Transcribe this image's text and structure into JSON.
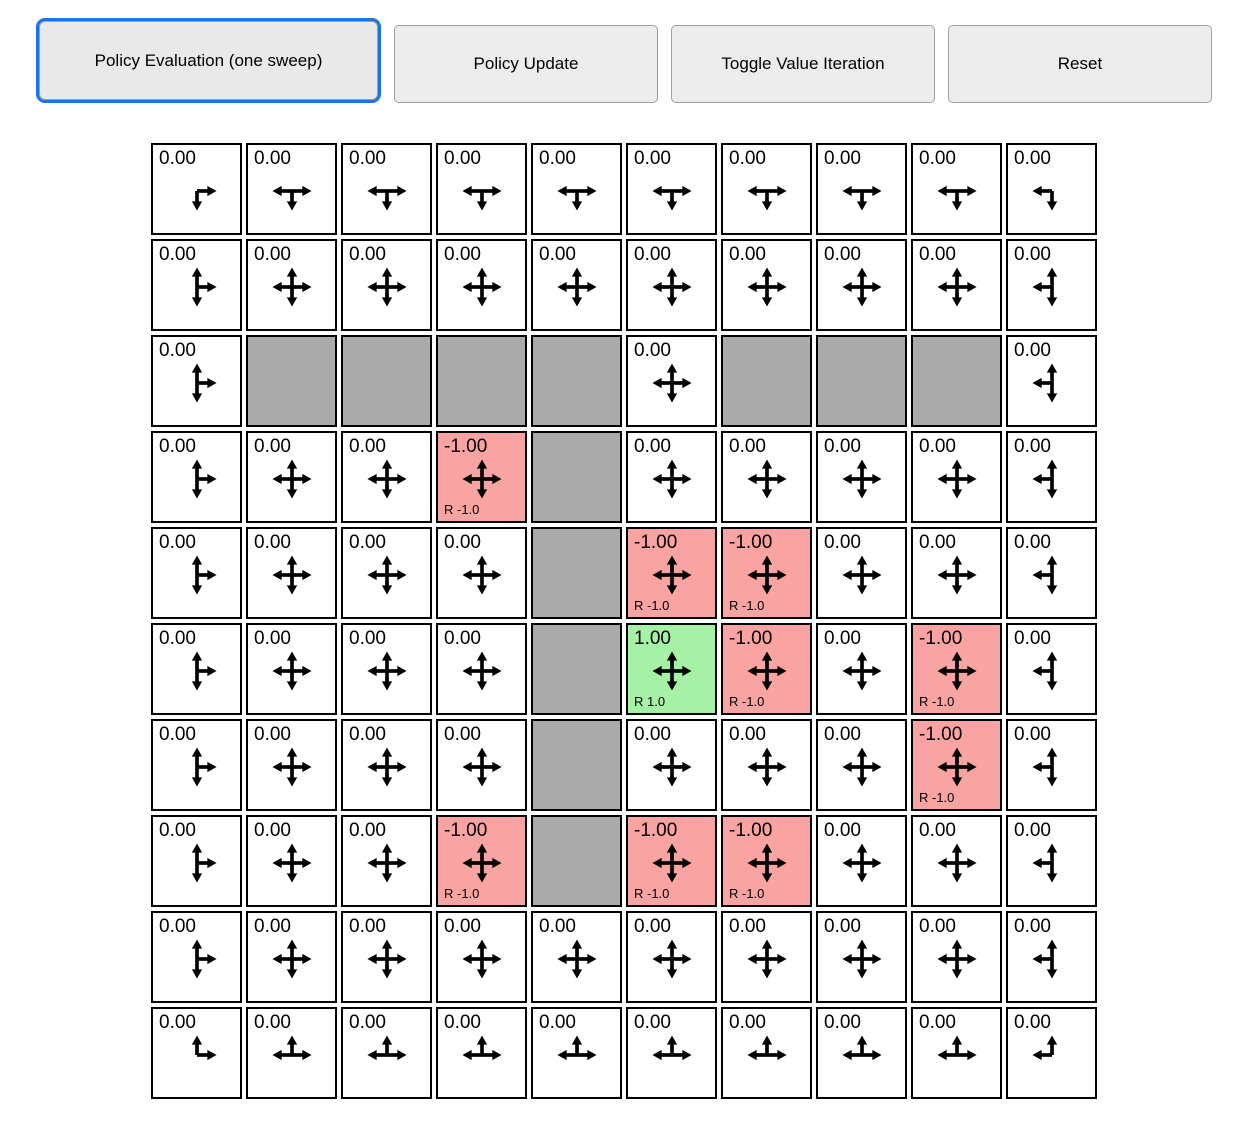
{
  "toolbar": {
    "buttons": [
      {
        "label": "Policy Evaluation (one sweep)",
        "active": true
      },
      {
        "label": "Policy Update",
        "active": false
      },
      {
        "label": "Toggle Value Iteration",
        "active": false
      },
      {
        "label": "Reset",
        "active": false
      }
    ]
  },
  "colors": {
    "accent": "#1a73e8",
    "wall": "#aaaaaa",
    "negative_cell": "#f9a3a3",
    "positive_cell": "#a5f1a5",
    "cell_border": "#000000"
  },
  "arrows_legend": {
    "u": "up-arrow",
    "d": "down-arrow",
    "l": "left-arrow",
    "r": "right-arrow"
  },
  "grid": {
    "rows": 10,
    "cols": 10,
    "cells": [
      {
        "r": 0,
        "c": 0,
        "type": "empty",
        "value": "0.00",
        "arrows": "dr"
      },
      {
        "r": 0,
        "c": 1,
        "type": "empty",
        "value": "0.00",
        "arrows": "dlr"
      },
      {
        "r": 0,
        "c": 2,
        "type": "empty",
        "value": "0.00",
        "arrows": "dlr"
      },
      {
        "r": 0,
        "c": 3,
        "type": "empty",
        "value": "0.00",
        "arrows": "dlr"
      },
      {
        "r": 0,
        "c": 4,
        "type": "empty",
        "value": "0.00",
        "arrows": "dlr"
      },
      {
        "r": 0,
        "c": 5,
        "type": "empty",
        "value": "0.00",
        "arrows": "dlr"
      },
      {
        "r": 0,
        "c": 6,
        "type": "empty",
        "value": "0.00",
        "arrows": "dlr"
      },
      {
        "r": 0,
        "c": 7,
        "type": "empty",
        "value": "0.00",
        "arrows": "dlr"
      },
      {
        "r": 0,
        "c": 8,
        "type": "empty",
        "value": "0.00",
        "arrows": "dlr"
      },
      {
        "r": 0,
        "c": 9,
        "type": "empty",
        "value": "0.00",
        "arrows": "dl"
      },
      {
        "r": 1,
        "c": 0,
        "type": "empty",
        "value": "0.00",
        "arrows": "udr"
      },
      {
        "r": 1,
        "c": 1,
        "type": "empty",
        "value": "0.00",
        "arrows": "udlr"
      },
      {
        "r": 1,
        "c": 2,
        "type": "empty",
        "value": "0.00",
        "arrows": "udlr"
      },
      {
        "r": 1,
        "c": 3,
        "type": "empty",
        "value": "0.00",
        "arrows": "udlr"
      },
      {
        "r": 1,
        "c": 4,
        "type": "empty",
        "value": "0.00",
        "arrows": "udlr"
      },
      {
        "r": 1,
        "c": 5,
        "type": "empty",
        "value": "0.00",
        "arrows": "udlr"
      },
      {
        "r": 1,
        "c": 6,
        "type": "empty",
        "value": "0.00",
        "arrows": "udlr"
      },
      {
        "r": 1,
        "c": 7,
        "type": "empty",
        "value": "0.00",
        "arrows": "udlr"
      },
      {
        "r": 1,
        "c": 8,
        "type": "empty",
        "value": "0.00",
        "arrows": "udlr"
      },
      {
        "r": 1,
        "c": 9,
        "type": "empty",
        "value": "0.00",
        "arrows": "udl"
      },
      {
        "r": 2,
        "c": 0,
        "type": "empty",
        "value": "0.00",
        "arrows": "udr"
      },
      {
        "r": 2,
        "c": 1,
        "type": "wall"
      },
      {
        "r": 2,
        "c": 2,
        "type": "wall"
      },
      {
        "r": 2,
        "c": 3,
        "type": "wall"
      },
      {
        "r": 2,
        "c": 4,
        "type": "wall"
      },
      {
        "r": 2,
        "c": 5,
        "type": "empty",
        "value": "0.00",
        "arrows": "udlr"
      },
      {
        "r": 2,
        "c": 6,
        "type": "wall"
      },
      {
        "r": 2,
        "c": 7,
        "type": "wall"
      },
      {
        "r": 2,
        "c": 8,
        "type": "wall"
      },
      {
        "r": 2,
        "c": 9,
        "type": "empty",
        "value": "0.00",
        "arrows": "udl"
      },
      {
        "r": 3,
        "c": 0,
        "type": "empty",
        "value": "0.00",
        "arrows": "udr"
      },
      {
        "r": 3,
        "c": 1,
        "type": "empty",
        "value": "0.00",
        "arrows": "udlr"
      },
      {
        "r": 3,
        "c": 2,
        "type": "empty",
        "value": "0.00",
        "arrows": "udlr"
      },
      {
        "r": 3,
        "c": 3,
        "type": "negative",
        "value": "-1.00",
        "reward": "R -1.0",
        "arrows": "udlr"
      },
      {
        "r": 3,
        "c": 4,
        "type": "wall"
      },
      {
        "r": 3,
        "c": 5,
        "type": "empty",
        "value": "0.00",
        "arrows": "udlr"
      },
      {
        "r": 3,
        "c": 6,
        "type": "empty",
        "value": "0.00",
        "arrows": "udlr"
      },
      {
        "r": 3,
        "c": 7,
        "type": "empty",
        "value": "0.00",
        "arrows": "udlr"
      },
      {
        "r": 3,
        "c": 8,
        "type": "empty",
        "value": "0.00",
        "arrows": "udlr"
      },
      {
        "r": 3,
        "c": 9,
        "type": "empty",
        "value": "0.00",
        "arrows": "udl"
      },
      {
        "r": 4,
        "c": 0,
        "type": "empty",
        "value": "0.00",
        "arrows": "udr"
      },
      {
        "r": 4,
        "c": 1,
        "type": "empty",
        "value": "0.00",
        "arrows": "udlr"
      },
      {
        "r": 4,
        "c": 2,
        "type": "empty",
        "value": "0.00",
        "arrows": "udlr"
      },
      {
        "r": 4,
        "c": 3,
        "type": "empty",
        "value": "0.00",
        "arrows": "udlr"
      },
      {
        "r": 4,
        "c": 4,
        "type": "wall"
      },
      {
        "r": 4,
        "c": 5,
        "type": "negative",
        "value": "-1.00",
        "reward": "R -1.0",
        "arrows": "udlr"
      },
      {
        "r": 4,
        "c": 6,
        "type": "negative",
        "value": "-1.00",
        "reward": "R -1.0",
        "arrows": "udlr"
      },
      {
        "r": 4,
        "c": 7,
        "type": "empty",
        "value": "0.00",
        "arrows": "udlr"
      },
      {
        "r": 4,
        "c": 8,
        "type": "empty",
        "value": "0.00",
        "arrows": "udlr"
      },
      {
        "r": 4,
        "c": 9,
        "type": "empty",
        "value": "0.00",
        "arrows": "udl"
      },
      {
        "r": 5,
        "c": 0,
        "type": "empty",
        "value": "0.00",
        "arrows": "udr"
      },
      {
        "r": 5,
        "c": 1,
        "type": "empty",
        "value": "0.00",
        "arrows": "udlr"
      },
      {
        "r": 5,
        "c": 2,
        "type": "empty",
        "value": "0.00",
        "arrows": "udlr"
      },
      {
        "r": 5,
        "c": 3,
        "type": "empty",
        "value": "0.00",
        "arrows": "udlr"
      },
      {
        "r": 5,
        "c": 4,
        "type": "wall"
      },
      {
        "r": 5,
        "c": 5,
        "type": "positive",
        "value": "1.00",
        "reward": "R 1.0",
        "arrows": "udlr"
      },
      {
        "r": 5,
        "c": 6,
        "type": "negative",
        "value": "-1.00",
        "reward": "R -1.0",
        "arrows": "udlr"
      },
      {
        "r": 5,
        "c": 7,
        "type": "empty",
        "value": "0.00",
        "arrows": "udlr"
      },
      {
        "r": 5,
        "c": 8,
        "type": "negative",
        "value": "-1.00",
        "reward": "R -1.0",
        "arrows": "udlr"
      },
      {
        "r": 5,
        "c": 9,
        "type": "empty",
        "value": "0.00",
        "arrows": "udl"
      },
      {
        "r": 6,
        "c": 0,
        "type": "empty",
        "value": "0.00",
        "arrows": "udr"
      },
      {
        "r": 6,
        "c": 1,
        "type": "empty",
        "value": "0.00",
        "arrows": "udlr"
      },
      {
        "r": 6,
        "c": 2,
        "type": "empty",
        "value": "0.00",
        "arrows": "udlr"
      },
      {
        "r": 6,
        "c": 3,
        "type": "empty",
        "value": "0.00",
        "arrows": "udlr"
      },
      {
        "r": 6,
        "c": 4,
        "type": "wall"
      },
      {
        "r": 6,
        "c": 5,
        "type": "empty",
        "value": "0.00",
        "arrows": "udlr"
      },
      {
        "r": 6,
        "c": 6,
        "type": "empty",
        "value": "0.00",
        "arrows": "udlr"
      },
      {
        "r": 6,
        "c": 7,
        "type": "empty",
        "value": "0.00",
        "arrows": "udlr"
      },
      {
        "r": 6,
        "c": 8,
        "type": "negative",
        "value": "-1.00",
        "reward": "R -1.0",
        "arrows": "udlr"
      },
      {
        "r": 6,
        "c": 9,
        "type": "empty",
        "value": "0.00",
        "arrows": "udl"
      },
      {
        "r": 7,
        "c": 0,
        "type": "empty",
        "value": "0.00",
        "arrows": "udr"
      },
      {
        "r": 7,
        "c": 1,
        "type": "empty",
        "value": "0.00",
        "arrows": "udlr"
      },
      {
        "r": 7,
        "c": 2,
        "type": "empty",
        "value": "0.00",
        "arrows": "udlr"
      },
      {
        "r": 7,
        "c": 3,
        "type": "negative",
        "value": "-1.00",
        "reward": "R -1.0",
        "arrows": "udlr"
      },
      {
        "r": 7,
        "c": 4,
        "type": "wall"
      },
      {
        "r": 7,
        "c": 5,
        "type": "negative",
        "value": "-1.00",
        "reward": "R -1.0",
        "arrows": "udlr"
      },
      {
        "r": 7,
        "c": 6,
        "type": "negative",
        "value": "-1.00",
        "reward": "R -1.0",
        "arrows": "udlr"
      },
      {
        "r": 7,
        "c": 7,
        "type": "empty",
        "value": "0.00",
        "arrows": "udlr"
      },
      {
        "r": 7,
        "c": 8,
        "type": "empty",
        "value": "0.00",
        "arrows": "udlr"
      },
      {
        "r": 7,
        "c": 9,
        "type": "empty",
        "value": "0.00",
        "arrows": "udl"
      },
      {
        "r": 8,
        "c": 0,
        "type": "empty",
        "value": "0.00",
        "arrows": "udr"
      },
      {
        "r": 8,
        "c": 1,
        "type": "empty",
        "value": "0.00",
        "arrows": "udlr"
      },
      {
        "r": 8,
        "c": 2,
        "type": "empty",
        "value": "0.00",
        "arrows": "udlr"
      },
      {
        "r": 8,
        "c": 3,
        "type": "empty",
        "value": "0.00",
        "arrows": "udlr"
      },
      {
        "r": 8,
        "c": 4,
        "type": "empty",
        "value": "0.00",
        "arrows": "udlr"
      },
      {
        "r": 8,
        "c": 5,
        "type": "empty",
        "value": "0.00",
        "arrows": "udlr"
      },
      {
        "r": 8,
        "c": 6,
        "type": "empty",
        "value": "0.00",
        "arrows": "udlr"
      },
      {
        "r": 8,
        "c": 7,
        "type": "empty",
        "value": "0.00",
        "arrows": "udlr"
      },
      {
        "r": 8,
        "c": 8,
        "type": "empty",
        "value": "0.00",
        "arrows": "udlr"
      },
      {
        "r": 8,
        "c": 9,
        "type": "empty",
        "value": "0.00",
        "arrows": "udl"
      },
      {
        "r": 9,
        "c": 0,
        "type": "empty",
        "value": "0.00",
        "arrows": "ur"
      },
      {
        "r": 9,
        "c": 1,
        "type": "empty",
        "value": "0.00",
        "arrows": "ulr"
      },
      {
        "r": 9,
        "c": 2,
        "type": "empty",
        "value": "0.00",
        "arrows": "ulr"
      },
      {
        "r": 9,
        "c": 3,
        "type": "empty",
        "value": "0.00",
        "arrows": "ulr"
      },
      {
        "r": 9,
        "c": 4,
        "type": "empty",
        "value": "0.00",
        "arrows": "ulr"
      },
      {
        "r": 9,
        "c": 5,
        "type": "empty",
        "value": "0.00",
        "arrows": "ulr"
      },
      {
        "r": 9,
        "c": 6,
        "type": "empty",
        "value": "0.00",
        "arrows": "ulr"
      },
      {
        "r": 9,
        "c": 7,
        "type": "empty",
        "value": "0.00",
        "arrows": "ulr"
      },
      {
        "r": 9,
        "c": 8,
        "type": "empty",
        "value": "0.00",
        "arrows": "ulr"
      },
      {
        "r": 9,
        "c": 9,
        "type": "empty",
        "value": "0.00",
        "arrows": "ul"
      }
    ]
  }
}
